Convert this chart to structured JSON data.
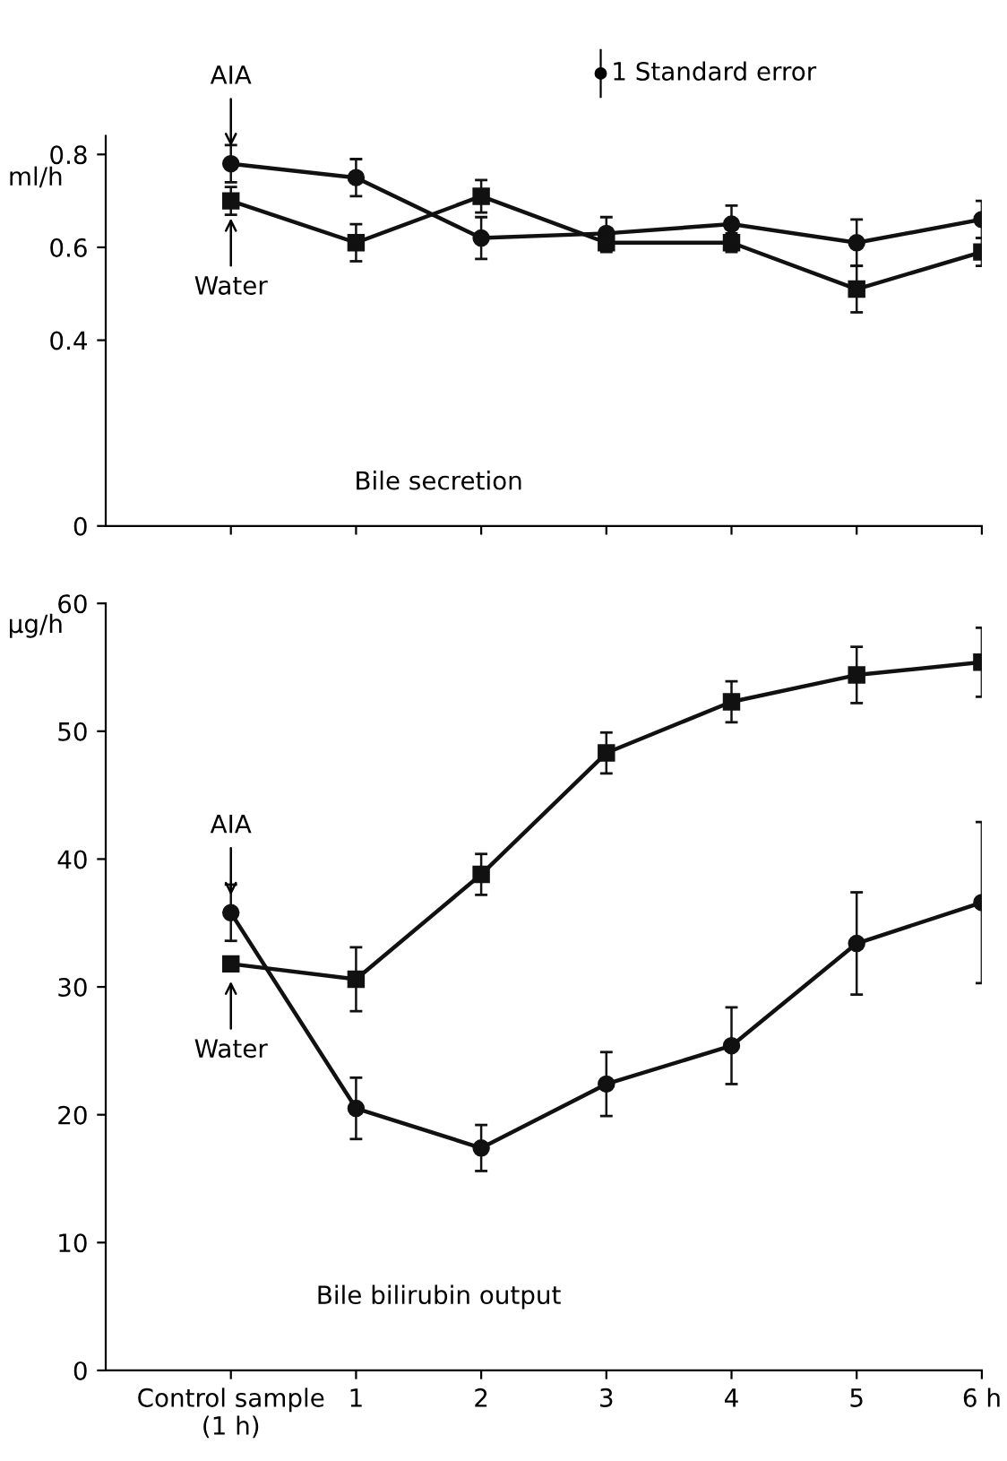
{
  "chart_data": [
    {
      "type": "line",
      "ylabel": "ml/h",
      "categories": [
        null,
        null,
        null,
        null,
        null,
        null,
        null
      ],
      "ylim": [
        0,
        0.84
      ],
      "yticks": [
        0,
        0.4,
        0.6,
        0.8
      ],
      "tick_labels": "y",
      "grid": false,
      "legend": false,
      "series": [
        {
          "color": "#111111",
          "marker": "circle",
          "values": [
            0.78,
            0.75,
            0.62,
            0.63,
            0.65,
            0.61,
            0.66
          ],
          "errors": [
            0.04,
            0.04,
            0.045,
            0.035,
            0.04,
            0.05,
            0.04
          ]
        },
        {
          "color": "#111111",
          "marker": "square",
          "values": [
            0.7,
            0.61,
            0.71,
            0.61,
            0.61,
            0.51,
            0.59
          ],
          "errors": [
            0.03,
            0.04,
            0.035,
            0.02,
            0.02,
            0.05,
            0.03
          ]
        }
      ],
      "annotations": [
        "AIA",
        "Water",
        "1 Standard error",
        "Bile secretion"
      ]
    },
    {
      "type": "line",
      "ylabel": "µg/h",
      "categories": [
        "Control sample\n(1 h)",
        "1",
        "2",
        "3",
        "4",
        "5",
        "6 h"
      ],
      "ylim": [
        0,
        60
      ],
      "yticks": [
        0,
        10,
        20,
        30,
        40,
        50,
        60
      ],
      "grid": false,
      "legend": false,
      "series": [
        {
          "color": "#111111",
          "marker": "circle",
          "values": [
            35.8,
            20.5,
            17.4,
            22.4,
            25.4,
            33.4,
            36.6
          ],
          "errors": [
            2.2,
            2.4,
            1.8,
            2.5,
            3,
            4,
            6.3
          ]
        },
        {
          "color": "#111111",
          "marker": "square",
          "values": [
            31.8,
            30.6,
            38.8,
            48.3,
            52.3,
            54.4,
            55.4
          ],
          "errors": [
            null,
            2.5,
            1.6,
            1.6,
            1.6,
            2.2,
            2.7
          ]
        }
      ],
      "annotations": [
        "AIA",
        "Water",
        "Bile bilirubin output"
      ]
    }
  ]
}
